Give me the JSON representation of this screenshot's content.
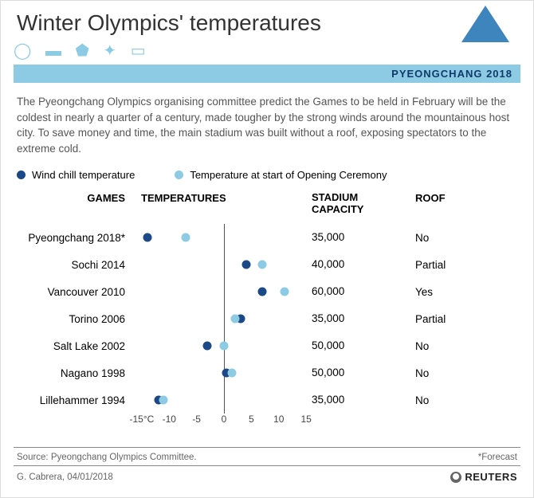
{
  "title": "Winter Olympics' temperatures",
  "subbar": "PYEONGCHANG 2018",
  "intro": "The Pyeongchang Olympics organising committee predict the Games to be held in February will be the coldest in nearly a quarter of a century, made tougher by the strong winds around the mountainous host city. To save money and time, the main stadium was built without a roof, exposing spectators to the extreme cold.",
  "legend": {
    "wind": "Wind chill temperature",
    "open": "Temperature at start of Opening Ceremony"
  },
  "colors": {
    "wind": "#1b4886",
    "open": "#8dcbe4",
    "subbar_bg": "#8dcbe4",
    "subbar_text": "#0f3a6a",
    "triangle": "#3e84bd",
    "decor": "#8dcbe4",
    "intro_text": "#555555",
    "axis_line": "#555555"
  },
  "headers": {
    "games": "GAMES",
    "temps": "TEMPERATURES",
    "capacity": "STADIUM\nCAPACITY",
    "roof": "ROOF"
  },
  "axis": {
    "min": -16,
    "max": 16,
    "ticks": [
      {
        "v": -15,
        "label": "-15°C"
      },
      {
        "v": -10,
        "label": "-10"
      },
      {
        "v": -5,
        "label": "-5"
      },
      {
        "v": 0,
        "label": "0"
      },
      {
        "v": 5,
        "label": "5"
      },
      {
        "v": 10,
        "label": "10"
      },
      {
        "v": 15,
        "label": "15"
      }
    ]
  },
  "games": [
    {
      "name": "Pyeongchang 2018*",
      "wind": -14,
      "open": -7,
      "capacity": "35,000",
      "roof": "No"
    },
    {
      "name": "Sochi 2014",
      "wind": 4,
      "open": 7,
      "capacity": "40,000",
      "roof": "Partial"
    },
    {
      "name": "Vancouver 2010",
      "wind": 7,
      "open": 11,
      "capacity": "60,000",
      "roof": "Yes"
    },
    {
      "name": "Torino 2006",
      "wind": 3,
      "open": 2,
      "capacity": "35,000",
      "roof": "Partial"
    },
    {
      "name": "Salt Lake 2002",
      "wind": -3,
      "open": 0,
      "capacity": "50,000",
      "roof": "No"
    },
    {
      "name": "Nagano 1998",
      "wind": 0.5,
      "open": 1.5,
      "capacity": "50,000",
      "roof": "No"
    },
    {
      "name": "Lillehammer 1994",
      "wind": -12,
      "open": -11,
      "capacity": "35,000",
      "roof": "No"
    }
  ],
  "footer": {
    "source": "Source: Pyeongchang Olympics Committee.",
    "forecast": "*Forecast",
    "credit": "G. Cabrera, 04/01/2018",
    "brand": "REUTERS"
  }
}
